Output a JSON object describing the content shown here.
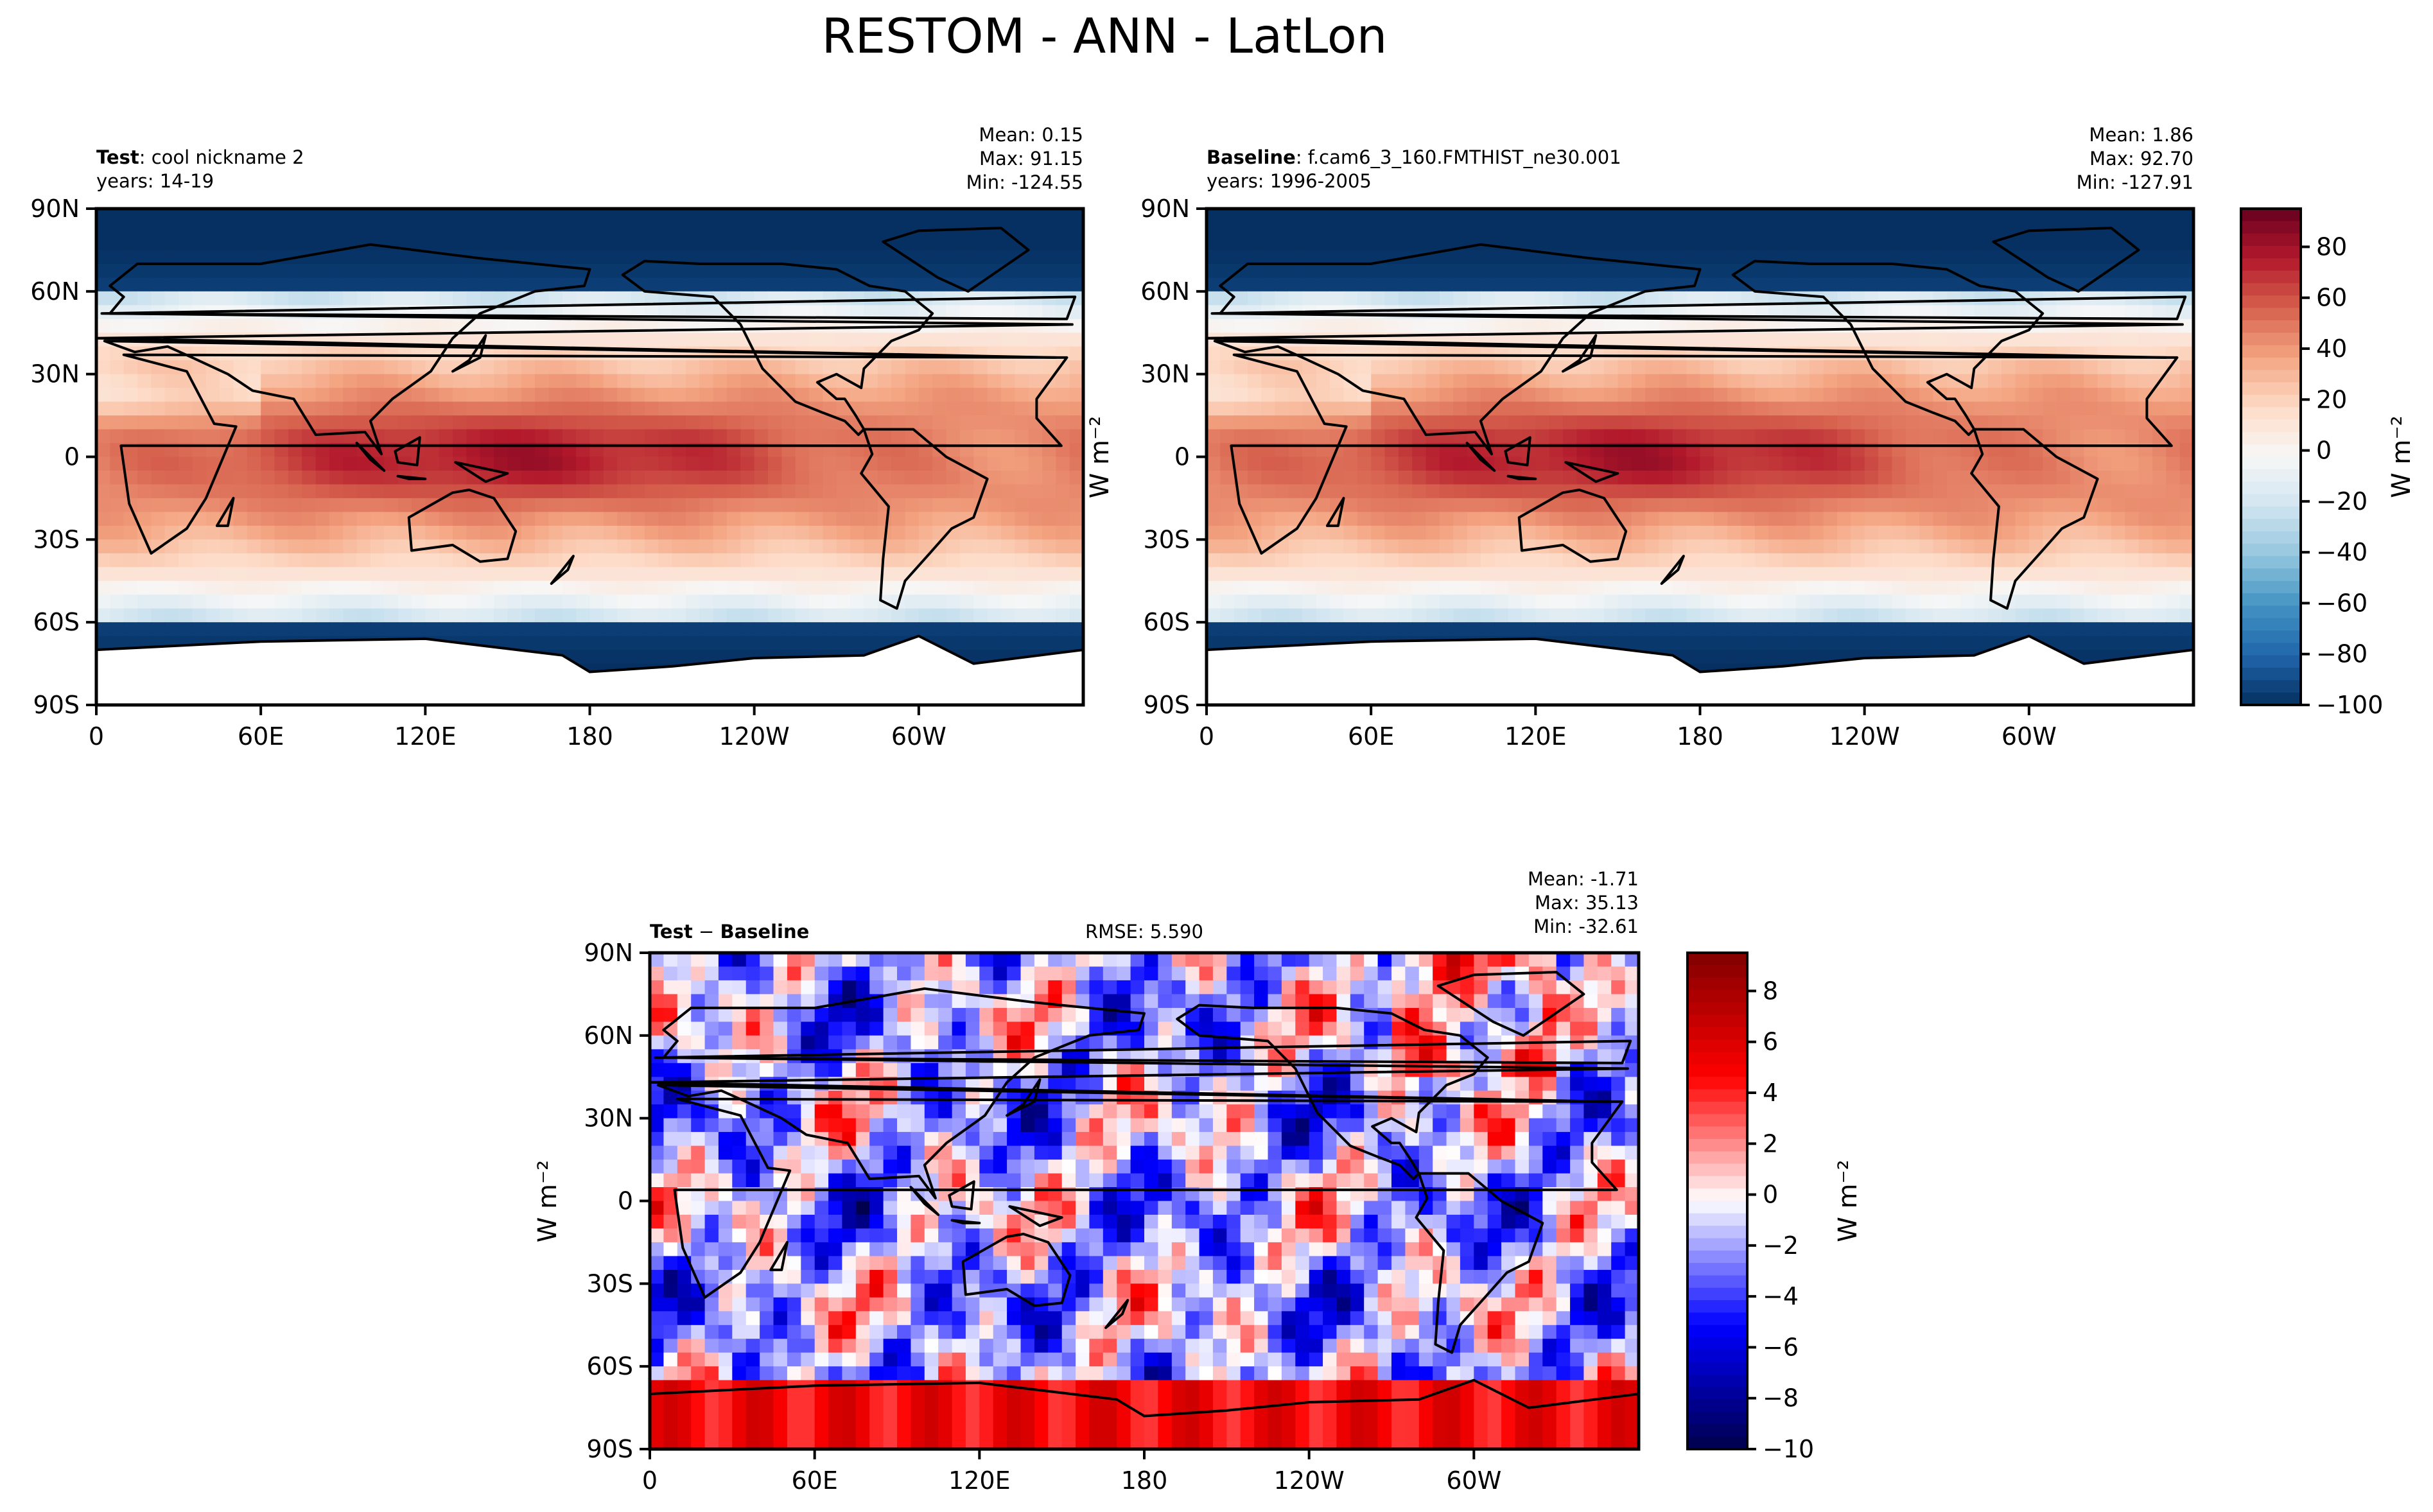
{
  "chart_data": {
    "type": "heatmap",
    "title": "RESTOM - ANN - LatLon",
    "panels": [
      {
        "id": "test",
        "label_bold": "Test",
        "label_rest": ": cool nickname 2",
        "years": "years: 14-19",
        "stats": [
          "Mean:  0.15",
          "Max: 91.15",
          "Min: -124.55"
        ],
        "units": "W m⁻²",
        "x_ticks": [
          "0",
          "60E",
          "120E",
          "180",
          "120W",
          "60W"
        ],
        "y_ticks": [
          "90N",
          "60N",
          "30N",
          "0",
          "30S",
          "60S",
          "90S"
        ],
        "vmin": -100,
        "vmax": 95,
        "field": "restom"
      },
      {
        "id": "baseline",
        "label_bold": "Baseline",
        "label_rest": ": f.cam6_3_160.FMTHIST_ne30.001",
        "years": "years: 1996-2005",
        "stats": [
          "Mean:  1.86",
          "Max: 92.70",
          "Min: -127.91"
        ],
        "units": "W m⁻²",
        "x_ticks": [
          "0",
          "60E",
          "120E",
          "180",
          "120W",
          "60W"
        ],
        "y_ticks": [
          "90N",
          "60N",
          "30N",
          "0",
          "30S",
          "60S",
          "90S"
        ],
        "vmin": -100,
        "vmax": 95,
        "field": "restom"
      },
      {
        "id": "diff",
        "label_bold": "Test",
        "label_minus": "−",
        "label_bold2": "Baseline",
        "rmse": "RMSE: 5.590",
        "stats": [
          "Mean: -1.71",
          "Max: 35.13",
          "Min: -32.61"
        ],
        "units": "W m⁻²",
        "x_ticks": [
          "0",
          "60E",
          "120E",
          "180",
          "120W",
          "60W"
        ],
        "y_ticks": [
          "90N",
          "60N",
          "30N",
          "0",
          "30S",
          "60S",
          "90S"
        ],
        "vmin": -10,
        "vmax": 9.5,
        "field": "diff"
      }
    ],
    "colorbars": [
      {
        "for": "test-baseline",
        "ticks": [
          80,
          60,
          40,
          20,
          0,
          -20,
          -40,
          -60,
          -80,
          -100
        ],
        "tick_labels": [
          "80",
          "60",
          "40",
          "20",
          "0",
          "−20",
          "−40",
          "−60",
          "−80",
          "−100"
        ],
        "label": "W m⁻²",
        "colormap": "RdBu_r",
        "vmin": -100,
        "vmax": 95
      },
      {
        "for": "diff",
        "ticks": [
          8,
          6,
          4,
          2,
          0,
          -2,
          -4,
          -6,
          -8,
          -10
        ],
        "tick_labels": [
          "8",
          "6",
          "4",
          "2",
          "0",
          "−2",
          "−4",
          "−6",
          "−8",
          "−10"
        ],
        "label": "W m⁻²",
        "colormap": "seismic",
        "vmin": -10,
        "vmax": 9.5
      }
    ]
  }
}
